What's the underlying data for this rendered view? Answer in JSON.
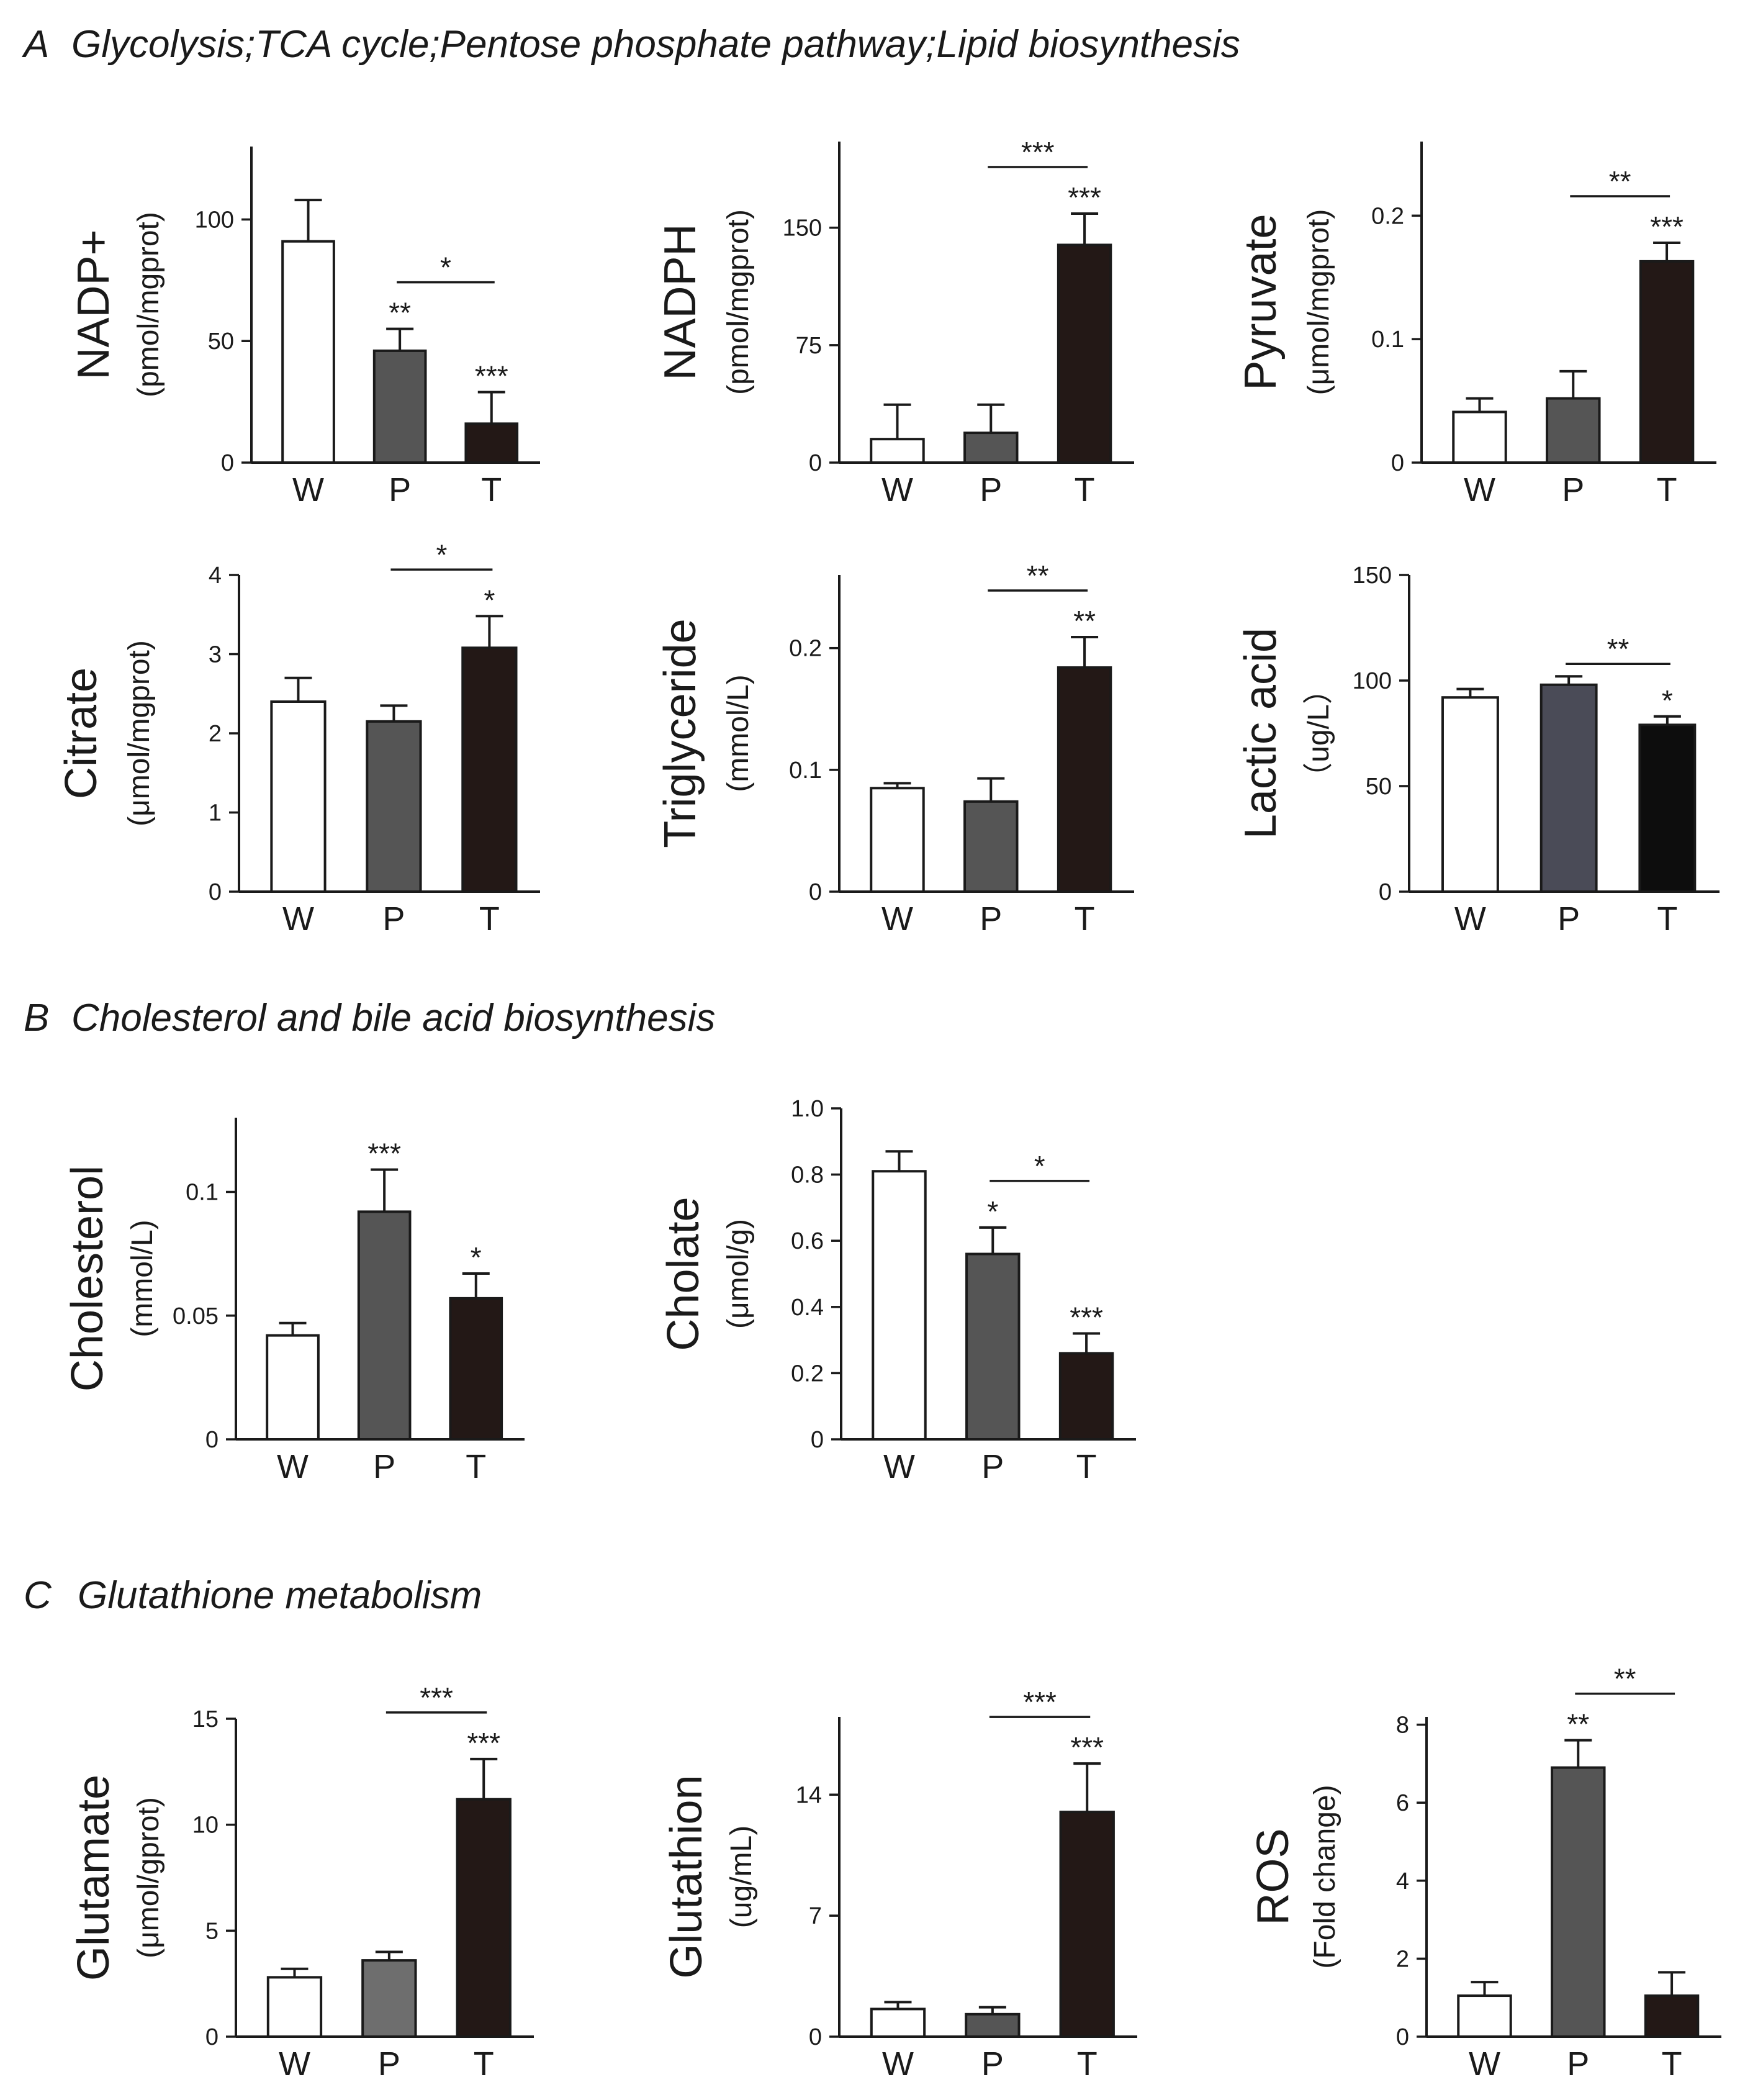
{
  "sections": [
    {
      "letter": "A",
      "title": "Glycolysis;TCA cycle;Pentose phosphate pathway;Lipid biosynthesis"
    },
    {
      "letter": "B",
      "title": "Cholesterol and bile acid biosynthesis"
    },
    {
      "letter": "C",
      "title": "Glutathione metabolism"
    }
  ],
  "chart_data": [
    {
      "id": "nadp",
      "type": "bar",
      "title": "NADP+",
      "ylabel": "NADP+",
      "yunit": "(pmol/mgprot)",
      "categories": [
        "W",
        "P",
        "T"
      ],
      "values": [
        91,
        46,
        16
      ],
      "errors": [
        17,
        9,
        13
      ],
      "ylim": [
        0,
        130
      ],
      "yticks": [
        0,
        50,
        100
      ],
      "tick_labels": [
        "0",
        "50",
        "100"
      ],
      "bar_colors": [
        "#ffffff",
        "#555555",
        "#231816"
      ],
      "significance": [
        "",
        "**",
        "***"
      ],
      "brackets": [
        {
          "from": 1,
          "to": 2,
          "label": "*"
        }
      ]
    },
    {
      "id": "nadph",
      "type": "bar",
      "title": "NADPH",
      "ylabel": "NADPH",
      "yunit": "(pmol/mgprot)",
      "categories": [
        "W",
        "P",
        "T"
      ],
      "values": [
        15,
        19,
        139
      ],
      "errors": [
        22,
        18,
        20
      ],
      "ylim": [
        0,
        205
      ],
      "yticks": [
        0,
        75,
        150
      ],
      "tick_labels": [
        "0",
        "75",
        "150"
      ],
      "bar_colors": [
        "#ffffff",
        "#555555",
        "#231816"
      ],
      "significance": [
        "",
        "",
        "***"
      ],
      "brackets": [
        {
          "from": 1,
          "to": 2,
          "label": "***"
        }
      ]
    },
    {
      "id": "pyruvate",
      "type": "bar",
      "title": "Pyruvate",
      "ylabel": "Pyruvate",
      "yunit": "(μmol/mgprot)",
      "categories": [
        "W",
        "P",
        "T"
      ],
      "values": [
        0.041,
        0.052,
        0.163
      ],
      "errors": [
        0.011,
        0.022,
        0.015
      ],
      "ylim": [
        0,
        0.26
      ],
      "yticks": [
        0,
        0.1,
        0.2
      ],
      "tick_labels": [
        "0",
        "0.1",
        "0.2"
      ],
      "bar_colors": [
        "#ffffff",
        "#555555",
        "#231816"
      ],
      "significance": [
        "",
        "",
        "***"
      ],
      "brackets": [
        {
          "from": 1,
          "to": 2,
          "label": "**"
        }
      ]
    },
    {
      "id": "citrate",
      "type": "bar",
      "title": "Citrate",
      "ylabel": "Citrate",
      "yunit": "(μmol/mgprot)",
      "categories": [
        "W",
        "P",
        "T"
      ],
      "values": [
        2.4,
        2.15,
        3.08
      ],
      "errors": [
        0.3,
        0.2,
        0.4
      ],
      "ylim": [
        0,
        4
      ],
      "yticks": [
        0,
        1,
        2,
        3,
        4
      ],
      "tick_labels": [
        "0",
        "1",
        "2",
        "3",
        "4"
      ],
      "bar_colors": [
        "#ffffff",
        "#555555",
        "#231816"
      ],
      "significance": [
        "",
        "",
        "*"
      ],
      "brackets": [
        {
          "from": 1,
          "to": 2,
          "label": "*"
        }
      ]
    },
    {
      "id": "triglyceride",
      "type": "bar",
      "title": "Triglyceride",
      "ylabel": "Triglyceride",
      "yunit": "(mmol/L)",
      "categories": [
        "W",
        "P",
        "T"
      ],
      "values": [
        0.085,
        0.074,
        0.184
      ],
      "errors": [
        0.004,
        0.019,
        0.025
      ],
      "ylim": [
        0,
        0.26
      ],
      "yticks": [
        0,
        0.1,
        0.2
      ],
      "tick_labels": [
        "0",
        "0.1",
        "0.2"
      ],
      "bar_colors": [
        "#ffffff",
        "#555555",
        "#231816"
      ],
      "significance": [
        "",
        "",
        "**"
      ],
      "brackets": [
        {
          "from": 1,
          "to": 2,
          "label": "**"
        }
      ]
    },
    {
      "id": "lactic",
      "type": "bar",
      "title": "Lactic acid",
      "ylabel": "Lactic acid",
      "yunit": "（ug/L）",
      "categories": [
        "W",
        "P",
        "T"
      ],
      "values": [
        92,
        98,
        79
      ],
      "errors": [
        4,
        4,
        4
      ],
      "ylim": [
        0,
        150
      ],
      "yticks": [
        0,
        50,
        100,
        150
      ],
      "tick_labels": [
        "0",
        "50",
        "100",
        "150"
      ],
      "bar_colors": [
        "#ffffff",
        "#4a4b57",
        "#0d0d0d"
      ],
      "significance": [
        "",
        "",
        "*"
      ],
      "brackets": [
        {
          "from": 1,
          "to": 2,
          "label": "**"
        }
      ]
    },
    {
      "id": "cholesterol",
      "type": "bar",
      "title": "Cholesterol",
      "ylabel": "Cholesterol",
      "yunit": "(mmol/L)",
      "categories": [
        "W",
        "P",
        "T"
      ],
      "values": [
        0.042,
        0.092,
        0.057
      ],
      "errors": [
        0.005,
        0.017,
        0.01
      ],
      "ylim": [
        0,
        0.13
      ],
      "yticks": [
        0,
        0.05,
        0.1
      ],
      "tick_labels": [
        "0",
        "0.05",
        "0.1"
      ],
      "bar_colors": [
        "#ffffff",
        "#555555",
        "#231816"
      ],
      "significance": [
        "",
        "***",
        "*"
      ],
      "brackets": []
    },
    {
      "id": "cholate",
      "type": "bar",
      "title": "Cholate",
      "ylabel": "Cholate",
      "yunit": "(μmol/g)",
      "categories": [
        "W",
        "P",
        "T"
      ],
      "values": [
        0.81,
        0.56,
        0.26
      ],
      "errors": [
        0.06,
        0.08,
        0.06
      ],
      "ylim": [
        0,
        1.0
      ],
      "yticks": [
        0,
        0.2,
        0.4,
        0.6,
        0.8,
        1.0
      ],
      "tick_labels": [
        "0",
        "0.2",
        "0.4",
        "0.6",
        "0.8",
        "1.0"
      ],
      "bar_colors": [
        "#ffffff",
        "#555555",
        "#231816"
      ],
      "significance": [
        "",
        "*",
        "***"
      ],
      "brackets": [
        {
          "from": 1,
          "to": 2,
          "label": "*"
        }
      ]
    },
    {
      "id": "glutamate",
      "type": "bar",
      "title": "Glutamate",
      "ylabel": "Glutamate",
      "yunit": "(μmol/gprot)",
      "categories": [
        "W",
        "P",
        "T"
      ],
      "values": [
        2.8,
        3.6,
        11.2
      ],
      "errors": [
        0.4,
        0.4,
        1.9
      ],
      "ylim": [
        0,
        15
      ],
      "yticks": [
        0,
        5,
        10,
        15
      ],
      "tick_labels": [
        "0",
        "5",
        "10",
        "15"
      ],
      "bar_colors": [
        "#ffffff",
        "#6e6e6e",
        "#231816"
      ],
      "significance": [
        "",
        "",
        "***"
      ],
      "brackets": [
        {
          "from": 1,
          "to": 2,
          "label": "***"
        }
      ]
    },
    {
      "id": "glutathion",
      "type": "bar",
      "title": "Glutathion",
      "ylabel": "Glutathion",
      "yunit": "(ug/mL)",
      "categories": [
        "W",
        "P",
        "T"
      ],
      "values": [
        1.6,
        1.3,
        13.0
      ],
      "errors": [
        0.4,
        0.4,
        2.8
      ],
      "ylim": [
        0,
        18.5
      ],
      "yticks": [
        0,
        7,
        14
      ],
      "tick_labels": [
        "0",
        "7",
        "14"
      ],
      "bar_colors": [
        "#ffffff",
        "#555555",
        "#231816"
      ],
      "significance": [
        "",
        "",
        "***"
      ],
      "brackets": [
        {
          "from": 1,
          "to": 2,
          "label": "***"
        }
      ]
    },
    {
      "id": "ros",
      "type": "bar",
      "title": "ROS",
      "ylabel": "ROS",
      "yunit": "(Fold change)",
      "categories": [
        "W",
        "P",
        "T"
      ],
      "values": [
        1.05,
        6.9,
        1.05
      ],
      "errors": [
        0.35,
        0.7,
        0.6
      ],
      "ylim": [
        0,
        8.2
      ],
      "yticks": [
        0,
        2,
        4,
        6,
        8
      ],
      "tick_labels": [
        "0",
        "2",
        "4",
        "6",
        "8"
      ],
      "bar_colors": [
        "#ffffff",
        "#555555",
        "#231816"
      ],
      "significance": [
        "",
        "**",
        ""
      ],
      "brackets": [
        {
          "from": 1,
          "to": 2,
          "label": "**"
        }
      ]
    }
  ]
}
